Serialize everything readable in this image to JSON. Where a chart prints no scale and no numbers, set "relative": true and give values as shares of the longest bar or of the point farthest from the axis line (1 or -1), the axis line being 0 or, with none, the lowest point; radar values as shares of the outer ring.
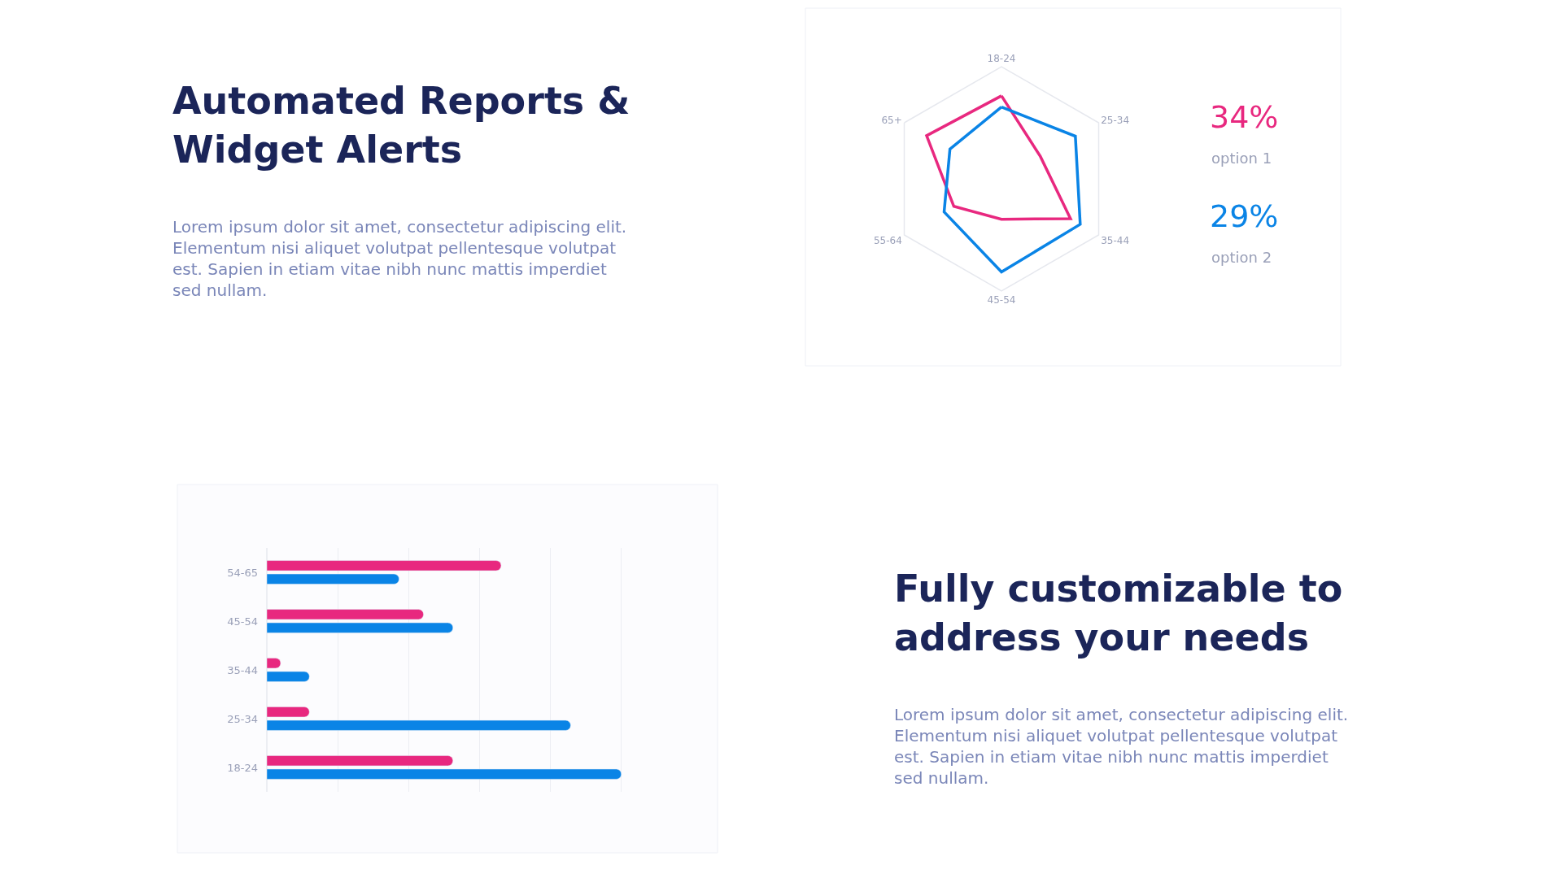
{
  "chart_data": [
    {
      "type": "other",
      "title": "Automated Reports & Widget Alerts",
      "annotations": [
        "Lorem ipsum dolor sit amet, consectetur adipiscing elit. Elementum nisi aliquet volutpat pellentesque volutpat est. Sapien in etiam vitae nibh nunc mattis imperdiet sed nullam."
      ]
    },
    {
      "type": "radar",
      "relative": true,
      "categories": [
        "18-24",
        "25-34",
        "35-44",
        "45-54",
        "55-64",
        "65+"
      ],
      "series": [
        {
          "name": "option 1",
          "color": "#e8287f",
          "values": [
            0.74,
            0.4,
            0.71,
            0.36,
            0.49,
            0.77
          ]
        },
        {
          "name": "option 2",
          "color": "#0a84e6",
          "values": [
            0.64,
            0.76,
            0.81,
            0.83,
            0.59,
            0.53
          ]
        }
      ],
      "annotations": [
        "34%",
        "29%"
      ],
      "marker": "none"
    },
    {
      "type": "bar",
      "orientation": "horizontal",
      "relative": true,
      "categories": [
        "54-65",
        "45-54",
        "35-44",
        "25-34",
        "18-24"
      ],
      "series": [
        {
          "color": "#e8287f",
          "values": [
            0.661,
            0.442,
            0.039,
            0.12,
            0.525
          ]
        },
        {
          "color": "#0a84e6",
          "values": [
            0.373,
            0.525,
            0.12,
            0.857,
            1
          ]
        }
      ],
      "grid": "x",
      "tick_labels": "y"
    },
    {
      "type": "other",
      "title": "Fully customizable to address your needs",
      "annotations": [
        "Lorem ipsum dolor sit amet, consectetur adipiscing elit. Elementum nisi aliquet volutpat pellentesque volutpat est. Sapien in etiam vitae nibh nunc mattis imperdiet sed nullam."
      ]
    }
  ]
}
